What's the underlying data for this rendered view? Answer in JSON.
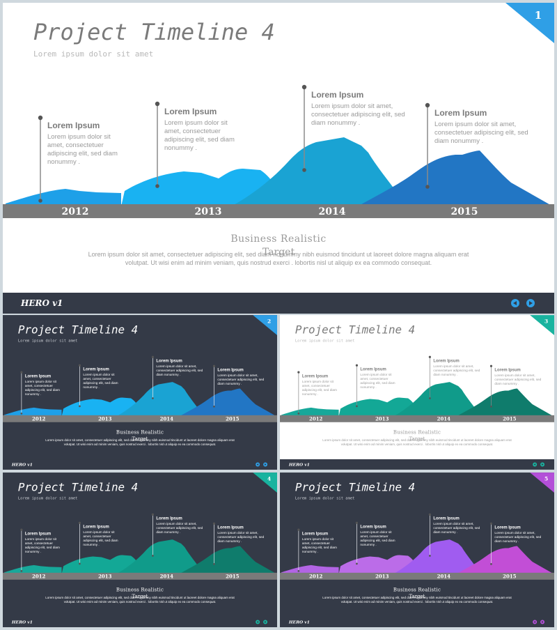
{
  "slides": [
    {
      "number": "1",
      "theme": "light",
      "palette": "blue",
      "title": "Project Timeline 4",
      "subtitle": "Lorem ipsum dolor sit amet",
      "section_title": "Business Realistic",
      "section_overlay": "Target",
      "body_line1": "Lorem ipsum dolor sit amet, consectetuer adipiscing elit, sed diam nonummy nibh euismod tincidunt ut laoreet dolore magna aliquam erat",
      "body_line2": "volutpat. Ut wisi enim ad minim veniam, quis nostrud exerci . lobortis nisl ut aliquip ex ea commodo consequat.",
      "footer_logo": "HERO v1"
    },
    {
      "number": "2",
      "theme": "dark",
      "palette": "blue",
      "title": "Project Timeline 4",
      "subtitle": "Lorem ipsum dolor sit amet",
      "section_title": "Business Realistic",
      "section_overlay": "Target",
      "body_line1": "Lorem ipsum dolor sit amet, consectetuer adipiscing elit, sed diam nonummy nibh euismod tincidunt ut laoreet dolore magna aliquam erat",
      "body_line2": "volutpat. Ut wisi enim ad minim veniam, quis nostrud exerci . lobortis nisl ut aliquip ex ea commodo consequat.",
      "footer_logo": "HERO v1"
    },
    {
      "number": "3",
      "theme": "light",
      "palette": "teal",
      "title": "Project Timeline 4",
      "subtitle": "Lorem ipsum dolor sit amet",
      "section_title": "Business Realistic",
      "section_overlay": "Target",
      "body_line1": "Lorem ipsum dolor sit amet, consectetuer adipiscing elit, sed diam nonummy nibh euismod tincidunt ut laoreet dolore magna aliquam erat",
      "body_line2": "volutpat. Ut wisi enim ad minim veniam, quis nostrud exerci . lobortis nisl ut aliquip ex ea commodo consequat.",
      "footer_logo": "HERO v1"
    },
    {
      "number": "4",
      "theme": "dark",
      "palette": "teal",
      "title": "Project Timeline 4",
      "subtitle": "Lorem ipsum dolor sit amet",
      "section_title": "Business Realistic",
      "section_overlay": "Target",
      "body_line1": "Lorem ipsum dolor sit amet, consectetuer adipiscing elit, sed diam nonummy nibh euismod tincidunt ut laoreet dolore magna aliquam erat",
      "body_line2": "volutpat. Ut wisi enim ad minim veniam, quis nostrud exerci . lobortis nisl ut aliquip ex ea commodo consequat.",
      "footer_logo": "HERO v1"
    },
    {
      "number": "5",
      "theme": "dark",
      "palette": "purple",
      "title": "Project Timeline 4",
      "subtitle": "Lorem ipsum dolor sit amet",
      "section_title": "Business Realistic",
      "section_overlay": "Target",
      "body_line1": "Lorem ipsum dolor sit amet, consectetuer adipiscing elit, sed diam nonummy nibh euismod tincidunt ut laoreet dolore magna aliquam erat",
      "body_line2": "volutpat. Ut wisi enim ad minim veniam, quis nostrud exerci . lobortis nisl ut aliquip ex ea commodo consequat.",
      "footer_logo": "HERO v1"
    }
  ],
  "timeline": {
    "years": [
      "2012",
      "2013",
      "2014",
      "2015"
    ],
    "callouts": [
      {
        "title": "Lorem Ipsum",
        "lines": [
          "Lorem ipsum dolor sit",
          "amet, consectetuer",
          "adipiscing elit, sed diam",
          "nonummy ."
        ]
      },
      {
        "title": "Lorem Ipsum",
        "lines": [
          "Lorem ipsum dolor sit",
          "amet, consectetuer",
          "adipiscing elit, sed diam",
          "nonummy ."
        ]
      },
      {
        "title": "Lorem Ipsum",
        "lines": [
          "Lorem ipsum dolor sit amet,",
          "consectetuer adipiscing elit, sed",
          "diam nonummy ."
        ]
      },
      {
        "title": "Lorem Ipsum",
        "lines": [
          "Lorem ipsum dolor sit amet,",
          "consectetuer adipiscing elit, sed",
          "diam nonummy ."
        ]
      }
    ]
  },
  "palettes": {
    "blue": {
      "c1": "#1ea0e8",
      "c2": "#19b2f2",
      "c3": "#1aa3d3",
      "c4": "#2276c4",
      "accent": "#2f9fe6"
    },
    "teal": {
      "c1": "#17a89a",
      "c2": "#13a896",
      "c3": "#109b8a",
      "c4": "#0f7c6c",
      "accent": "#19b39f"
    },
    "purple": {
      "c1": "#b264e4",
      "c2": "#bb6ce8",
      "c3": "#a05cf0",
      "c4": "#c24ed6",
      "accent": "#b34fd8"
    }
  },
  "themes": {
    "light": {
      "bg": "#ffffff",
      "title": "#7a7a7a",
      "title_bold": "#555555",
      "text": "#9a9a9a",
      "callout_title": "#7a7a7a",
      "body": "#9a9a9a",
      "section": "#9a9a9a"
    },
    "dark": {
      "bg": "#343a47",
      "title": "#ffffff",
      "title_bold": "#ffffff",
      "text": "#ffffff",
      "callout_title": "#ffffff",
      "body": "#ffffff",
      "section": "#ffffff"
    }
  },
  "colors": {
    "footer": "#343a47",
    "axis_band": "#7a7a7a",
    "pin": "#555555"
  }
}
